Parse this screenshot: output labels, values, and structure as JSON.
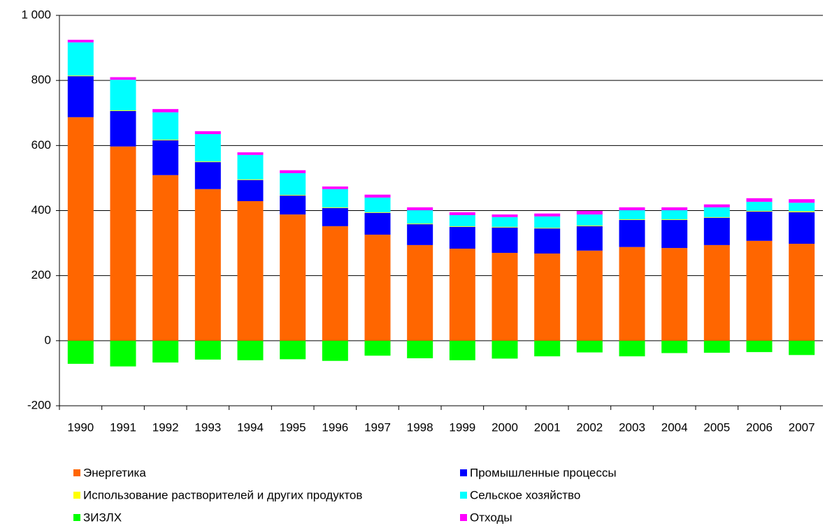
{
  "chart_data": {
    "type": "stacked_bar",
    "categories": [
      "1990",
      "1991",
      "1992",
      "1993",
      "1994",
      "1995",
      "1996",
      "1997",
      "1998",
      "1999",
      "2000",
      "2001",
      "2002",
      "2003",
      "2004",
      "2005",
      "2006",
      "2007"
    ],
    "series": [
      {
        "name": "Энергетика",
        "color": "#ff6600",
        "values": [
          687,
          597,
          509,
          466,
          429,
          388,
          352,
          326,
          294,
          283,
          270,
          268,
          277,
          288,
          285,
          294,
          307,
          298
        ]
      },
      {
        "name": "Промышленные процессы",
        "color": "#0000ff",
        "values": [
          126,
          109,
          107,
          83,
          65,
          58,
          56,
          67,
          64,
          67,
          78,
          77,
          75,
          83,
          86,
          84,
          90,
          97
        ]
      },
      {
        "name": "Использование растворителей и других продуктов",
        "color": "#ffff00",
        "values": [
          2,
          2,
          2,
          2,
          2,
          2,
          2,
          2,
          2,
          2,
          2,
          2,
          2,
          2,
          2,
          2,
          2,
          3
        ]
      },
      {
        "name": "Сельское хозяйство",
        "color": "#00ffff",
        "values": [
          102,
          94,
          84,
          84,
          75,
          67,
          56,
          45,
          41,
          34,
          30,
          35,
          34,
          28,
          28,
          30,
          28,
          26
        ]
      },
      {
        "name": "ЗИЗЛХ",
        "color": "#00ff00",
        "values": [
          -71,
          -79,
          -67,
          -58,
          -60,
          -57,
          -62,
          -46,
          -54,
          -60,
          -55,
          -48,
          -36,
          -48,
          -38,
          -37,
          -35,
          -44
        ]
      },
      {
        "name": "Отходы",
        "color": "#ff00ff",
        "values": [
          8,
          8,
          10,
          9,
          8,
          9,
          8,
          9,
          9,
          9,
          8,
          9,
          11,
          9,
          9,
          9,
          11,
          11
        ]
      }
    ],
    "ylim": [
      -200,
      1000
    ],
    "yticks": [
      -200,
      0,
      200,
      400,
      600,
      800,
      {
        "value": 1000,
        "label": "1 000"
      }
    ],
    "grid": true,
    "legend": "bottom"
  }
}
